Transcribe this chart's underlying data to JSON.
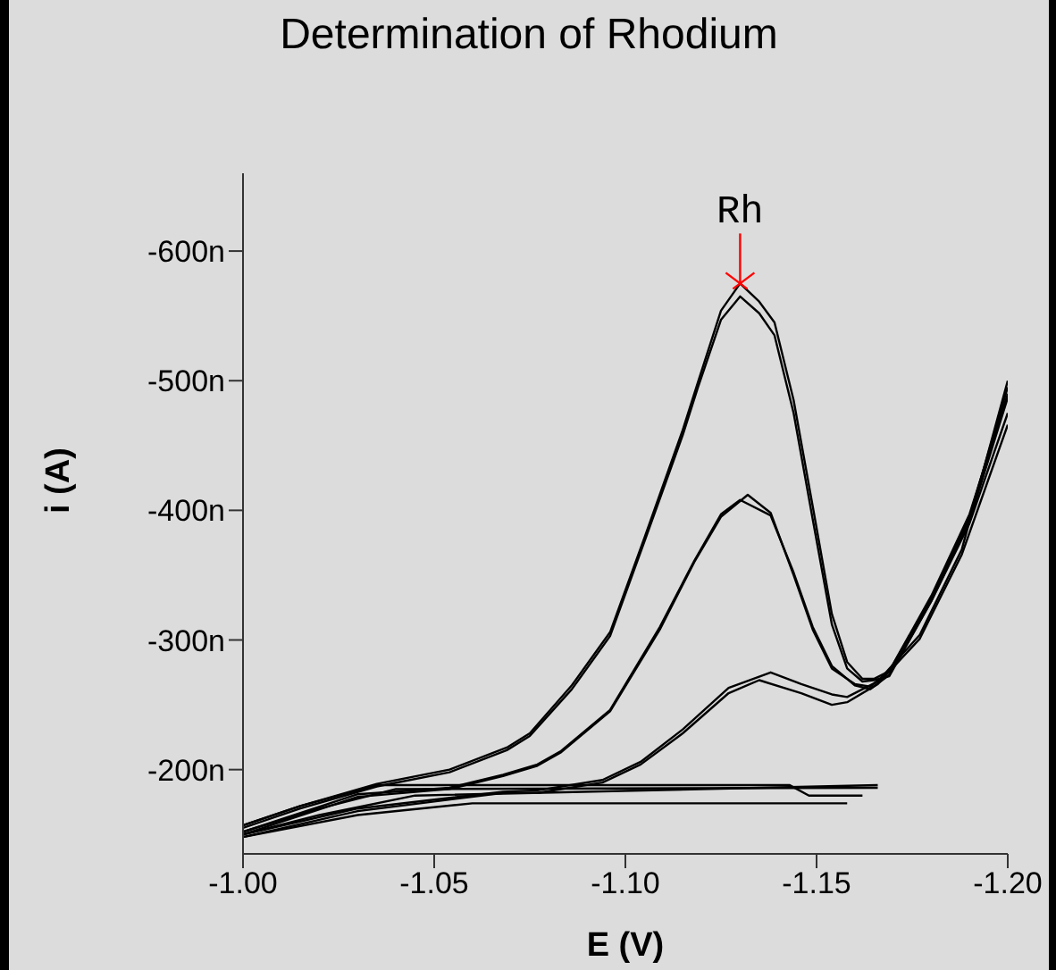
{
  "chart_data": {
    "type": "line",
    "title": "Determination of Rhodium",
    "xlabel": "E (V)",
    "ylabel": "i (A)",
    "xlim": [
      -1.0,
      -1.2
    ],
    "xticks": [
      {
        "value": -1.0,
        "label": "-1.00"
      },
      {
        "value": -1.05,
        "label": "-1.05"
      },
      {
        "value": -1.1,
        "label": "-1.10"
      },
      {
        "value": -1.15,
        "label": "-1.15"
      },
      {
        "value": -1.2,
        "label": "-1.20"
      }
    ],
    "ylim": [
      -135,
      -660
    ],
    "yticks": [
      {
        "value": -200,
        "label": "-200n"
      },
      {
        "value": -300,
        "label": "-300n"
      },
      {
        "value": -400,
        "label": "-400n"
      },
      {
        "value": -500,
        "label": "-500n"
      },
      {
        "value": -600,
        "label": "-600n"
      }
    ],
    "grid": false,
    "marker": "none",
    "line_style": "solid",
    "annotations": [
      {
        "text": "Rh",
        "x": -1.13,
        "y": -575
      }
    ],
    "series": [
      {
        "color": "#000000",
        "x": [
          -1.0,
          -1.015,
          -1.035,
          -1.054,
          -1.069,
          -1.075,
          -1.086,
          -1.096,
          -1.105,
          -1.115,
          -1.119,
          -1.125,
          -1.13,
          -1.135,
          -1.139,
          -1.144,
          -1.149,
          -1.154,
          -1.158,
          -1.162,
          -1.165,
          -1.169,
          -1.18,
          -1.19,
          -1.2
        ],
        "values": [
          -157,
          -172,
          -189,
          -200,
          -217,
          -228,
          -265,
          -306,
          -379,
          -462,
          -499,
          -554,
          -575,
          -561,
          -545,
          -485,
          -403,
          -320,
          -283,
          -270,
          -270,
          -276,
          -334,
          -397,
          -490
        ]
      },
      {
        "color": "#000000",
        "x": [
          -1.0,
          -1.015,
          -1.035,
          -1.054,
          -1.069,
          -1.075,
          -1.086,
          -1.096,
          -1.105,
          -1.115,
          -1.119,
          -1.125,
          -1.13,
          -1.135,
          -1.139,
          -1.144,
          -1.149,
          -1.154,
          -1.158,
          -1.162,
          -1.165,
          -1.169,
          -1.18,
          -1.19,
          -1.2
        ],
        "values": [
          -155,
          -170,
          -187,
          -198,
          -215,
          -226,
          -262,
          -303,
          -376,
          -458,
          -495,
          -547,
          -565,
          -552,
          -535,
          -475,
          -393,
          -312,
          -278,
          -268,
          -269,
          -272,
          -330,
          -390,
          -475
        ]
      },
      {
        "color": "#000000",
        "x": [
          -1.0,
          -1.03,
          -1.054,
          -1.068,
          -1.077,
          -1.083,
          -1.096,
          -1.109,
          -1.118,
          -1.125,
          -1.13,
          -1.138,
          -1.144,
          -1.149,
          -1.154,
          -1.16,
          -1.164,
          -1.169,
          -1.18,
          -1.19,
          -1.2
        ],
        "values": [
          -152,
          -181,
          -186,
          -196,
          -204,
          -214,
          -246,
          -310,
          -361,
          -397,
          -408,
          -396,
          -352,
          -310,
          -280,
          -265,
          -262,
          -273,
          -330,
          -392,
          -487
        ]
      },
      {
        "color": "#000000",
        "x": [
          -1.0,
          -1.03,
          -1.054,
          -1.068,
          -1.077,
          -1.083,
          -1.096,
          -1.109,
          -1.118,
          -1.125,
          -1.132,
          -1.138,
          -1.144,
          -1.149,
          -1.154,
          -1.16,
          -1.164,
          -1.169,
          -1.18,
          -1.19,
          -1.2
        ],
        "values": [
          -150,
          -179,
          -185,
          -195,
          -203,
          -213,
          -245,
          -308,
          -360,
          -395,
          -412,
          -398,
          -350,
          -308,
          -278,
          -266,
          -264,
          -276,
          -332,
          -395,
          -495
        ]
      },
      {
        "color": "#000000",
        "x": [
          -1.0,
          -1.03,
          -1.068,
          -1.077,
          -1.094,
          -1.104,
          -1.115,
          -1.127,
          -1.135,
          -1.146,
          -1.154,
          -1.158,
          -1.166,
          -1.177,
          -1.188,
          -1.2
        ],
        "values": [
          -148,
          -168,
          -182,
          -182,
          -190,
          -204,
          -228,
          -259,
          -269,
          -259,
          -250,
          -252,
          -266,
          -301,
          -366,
          -466
        ]
      },
      {
        "color": "#000000",
        "x": [
          -1.0,
          -1.03,
          -1.068,
          -1.077,
          -1.094,
          -1.104,
          -1.115,
          -1.127,
          -1.138,
          -1.146,
          -1.154,
          -1.158,
          -1.166,
          -1.177,
          -1.188,
          -1.2
        ],
        "values": [
          -150,
          -170,
          -183,
          -184,
          -192,
          -206,
          -231,
          -263,
          -275,
          -266,
          -258,
          -256,
          -268,
          -304,
          -370,
          -500
        ]
      },
      {
        "color": "#000000",
        "x": [
          -1.0,
          -1.015,
          -1.035,
          -1.143,
          -1.148,
          -1.162
        ],
        "values": [
          -157,
          -172,
          -188,
          -188,
          -180,
          -180
        ]
      },
      {
        "color": "#000000",
        "x": [
          -1.0,
          -1.02,
          -1.04,
          -1.166
        ],
        "values": [
          -152,
          -170,
          -185,
          -186
        ]
      },
      {
        "color": "#000000",
        "x": [
          -1.0,
          -1.02,
          -1.045,
          -1.166
        ],
        "values": [
          -150,
          -165,
          -180,
          -188
        ]
      },
      {
        "color": "#000000",
        "x": [
          -1.0,
          -1.03,
          -1.06,
          -1.158
        ],
        "values": [
          -148,
          -165,
          -174,
          -174
        ]
      }
    ]
  }
}
